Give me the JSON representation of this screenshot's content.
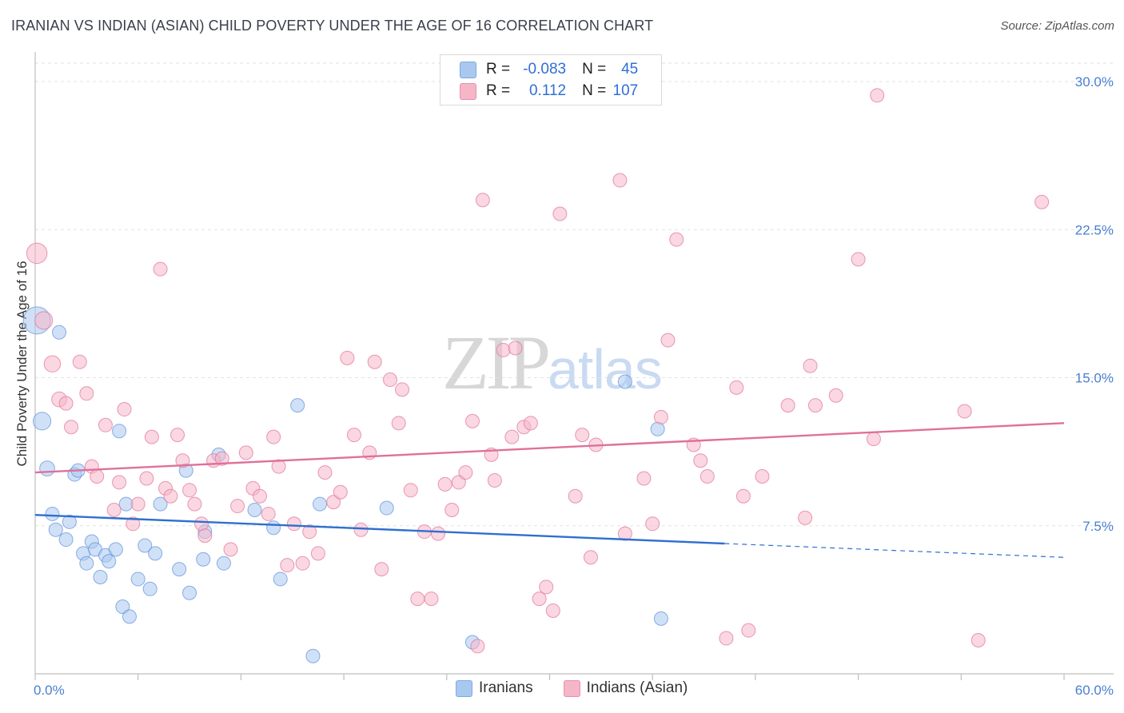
{
  "header": {
    "title": "IRANIAN VS INDIAN (ASIAN) CHILD POVERTY UNDER THE AGE OF 16 CORRELATION CHART",
    "source": "Source: ZipAtlas.com"
  },
  "watermark": {
    "zip": "ZIP",
    "atlas": "atlas"
  },
  "legend": {
    "rows": [
      {
        "r_label": "R = ",
        "r_value": "-0.083",
        "n_label": "N = ",
        "n_value": "45",
        "color": "#a9c8f0"
      },
      {
        "r_label": "R = ",
        "r_value": "0.112",
        "n_label": "N = ",
        "n_value": "107",
        "color": "#f5b6c8"
      }
    ],
    "bottom": [
      {
        "label": "Iranians",
        "color": "#a9c8f0"
      },
      {
        "label": "Indians (Asian)",
        "color": "#f5b6c8"
      }
    ]
  },
  "chart_data": {
    "type": "scatter",
    "title": "IRANIAN VS INDIAN (ASIAN) CHILD POVERTY UNDER THE AGE OF 16 CORRELATION CHART",
    "xlabel": "",
    "ylabel": "Child Poverty Under the Age of 16",
    "xlim": [
      0,
      60
    ],
    "ylim": [
      0,
      31.5
    ],
    "x_tick_labels": [
      "0.0%",
      "60.0%"
    ],
    "y_ticks": [
      7.5,
      15.0,
      22.5,
      30.0
    ],
    "y_tick_labels": [
      "7.5%",
      "15.0%",
      "22.5%",
      "30.0%"
    ],
    "grid": true,
    "legend_position": "top-center",
    "series": [
      {
        "name": "Iranians",
        "color": "#5b8fd9",
        "fill": "#a9c8f0",
        "trend": {
          "x": [
            0,
            40.2
          ],
          "y": [
            8.05,
            6.6
          ],
          "dashed_to": [
            60,
            5.9
          ]
        },
        "points": [
          [
            0.1,
            17.9,
            2
          ],
          [
            1.4,
            17.3,
            1
          ],
          [
            0.4,
            12.8,
            1.3
          ],
          [
            0.7,
            10.4,
            1.1
          ],
          [
            1.0,
            8.1,
            1
          ],
          [
            1.2,
            7.3,
            1
          ],
          [
            1.8,
            6.8,
            1
          ],
          [
            2.0,
            7.7,
            1
          ],
          [
            2.3,
            10.1,
            1
          ],
          [
            2.5,
            10.3,
            1
          ],
          [
            2.8,
            6.1,
            1
          ],
          [
            3.0,
            5.6,
            1
          ],
          [
            3.3,
            6.7,
            1
          ],
          [
            3.5,
            6.3,
            1
          ],
          [
            3.8,
            4.9,
            1
          ],
          [
            4.1,
            6.0,
            1
          ],
          [
            4.3,
            5.7,
            1
          ],
          [
            4.7,
            6.3,
            1
          ],
          [
            4.9,
            12.3,
            1
          ],
          [
            5.1,
            3.4,
            1
          ],
          [
            5.3,
            8.6,
            1
          ],
          [
            5.5,
            2.9,
            1
          ],
          [
            6.0,
            4.8,
            1
          ],
          [
            6.4,
            6.5,
            1
          ],
          [
            6.7,
            4.3,
            1
          ],
          [
            7.0,
            6.1,
            1
          ],
          [
            7.3,
            8.6,
            1
          ],
          [
            8.4,
            5.3,
            1
          ],
          [
            9.0,
            4.1,
            1
          ],
          [
            8.8,
            10.3,
            1
          ],
          [
            9.8,
            5.8,
            1
          ],
          [
            9.9,
            7.2,
            1
          ],
          [
            10.7,
            11.1,
            1
          ],
          [
            11.0,
            5.6,
            1
          ],
          [
            12.8,
            8.3,
            1
          ],
          [
            13.9,
            7.4,
            1
          ],
          [
            14.3,
            4.8,
            1
          ],
          [
            15.3,
            13.6,
            1
          ],
          [
            16.2,
            0.9,
            1
          ],
          [
            16.6,
            8.6,
            1
          ],
          [
            20.5,
            8.4,
            1
          ],
          [
            25.5,
            1.6,
            1
          ],
          [
            34.4,
            14.8,
            1
          ],
          [
            36.3,
            12.4,
            1
          ],
          [
            36.5,
            2.8,
            1
          ]
        ]
      },
      {
        "name": "Indians (Asian)",
        "color": "#e0709a",
        "fill": "#f5b6c8",
        "trend": {
          "x": [
            0,
            60
          ],
          "y": [
            10.2,
            12.7
          ]
        },
        "points": [
          [
            0.1,
            21.3,
            1.5
          ],
          [
            0.5,
            17.9,
            1.3
          ],
          [
            1.0,
            15.7,
            1.2
          ],
          [
            1.4,
            13.9,
            1.1
          ],
          [
            1.8,
            13.7,
            1
          ],
          [
            2.1,
            12.5,
            1
          ],
          [
            2.6,
            15.8,
            1
          ],
          [
            3.0,
            14.2,
            1
          ],
          [
            3.3,
            10.5,
            1
          ],
          [
            3.6,
            10.0,
            1
          ],
          [
            4.1,
            12.6,
            1
          ],
          [
            4.6,
            8.3,
            1
          ],
          [
            4.9,
            9.7,
            1
          ],
          [
            5.2,
            13.4,
            1
          ],
          [
            5.7,
            7.6,
            1
          ],
          [
            6.0,
            8.6,
            1
          ],
          [
            6.5,
            9.9,
            1
          ],
          [
            6.8,
            12.0,
            1
          ],
          [
            7.3,
            20.5,
            1
          ],
          [
            7.6,
            9.4,
            1
          ],
          [
            7.9,
            9.0,
            1
          ],
          [
            8.3,
            12.1,
            1
          ],
          [
            8.6,
            10.8,
            1
          ],
          [
            9.0,
            9.3,
            1
          ],
          [
            9.3,
            8.6,
            1
          ],
          [
            9.7,
            7.6,
            1
          ],
          [
            9.9,
            7.0,
            1
          ],
          [
            10.4,
            10.8,
            1
          ],
          [
            10.9,
            10.9,
            1
          ],
          [
            11.4,
            6.3,
            1
          ],
          [
            11.8,
            8.5,
            1
          ],
          [
            12.3,
            11.2,
            1
          ],
          [
            12.7,
            9.4,
            1
          ],
          [
            13.1,
            9.0,
            1
          ],
          [
            13.6,
            8.1,
            1
          ],
          [
            13.9,
            12.0,
            1
          ],
          [
            14.2,
            10.5,
            1
          ],
          [
            14.7,
            5.5,
            1
          ],
          [
            15.1,
            7.6,
            1
          ],
          [
            15.6,
            5.6,
            1
          ],
          [
            16.0,
            7.2,
            1
          ],
          [
            16.5,
            6.1,
            1
          ],
          [
            16.9,
            10.2,
            1
          ],
          [
            17.4,
            8.7,
            1
          ],
          [
            17.8,
            9.2,
            1
          ],
          [
            18.2,
            16.0,
            1
          ],
          [
            18.6,
            12.1,
            1
          ],
          [
            19.0,
            7.3,
            1
          ],
          [
            19.5,
            11.2,
            1
          ],
          [
            19.8,
            15.8,
            1
          ],
          [
            20.2,
            5.3,
            1
          ],
          [
            20.7,
            14.9,
            1
          ],
          [
            21.2,
            12.7,
            1
          ],
          [
            21.4,
            14.4,
            1
          ],
          [
            21.9,
            9.3,
            1
          ],
          [
            22.3,
            3.8,
            1
          ],
          [
            22.7,
            7.2,
            1
          ],
          [
            23.1,
            3.8,
            1
          ],
          [
            23.5,
            7.1,
            1
          ],
          [
            23.9,
            9.6,
            1
          ],
          [
            24.3,
            8.3,
            1
          ],
          [
            24.7,
            9.7,
            1
          ],
          [
            25.1,
            10.2,
            1
          ],
          [
            25.5,
            12.8,
            1
          ],
          [
            25.8,
            1.4,
            1
          ],
          [
            26.1,
            24.0,
            1
          ],
          [
            26.6,
            11.1,
            1
          ],
          [
            26.8,
            9.8,
            1
          ],
          [
            27.3,
            16.4,
            1
          ],
          [
            27.8,
            12.0,
            1
          ],
          [
            28.0,
            16.5,
            1
          ],
          [
            28.5,
            12.5,
            1
          ],
          [
            28.9,
            12.7,
            1
          ],
          [
            29.4,
            3.8,
            1
          ],
          [
            29.8,
            4.4,
            1
          ],
          [
            30.2,
            3.2,
            1
          ],
          [
            30.6,
            23.3,
            1
          ],
          [
            31.5,
            9.0,
            1
          ],
          [
            31.9,
            12.1,
            1
          ],
          [
            32.4,
            5.9,
            1
          ],
          [
            32.7,
            11.6,
            1
          ],
          [
            34.1,
            25.0,
            1
          ],
          [
            34.4,
            7.1,
            1
          ],
          [
            35.5,
            9.9,
            1
          ],
          [
            36.0,
            7.6,
            1
          ],
          [
            36.5,
            13.0,
            1
          ],
          [
            36.9,
            16.9,
            1
          ],
          [
            37.4,
            22.0,
            1
          ],
          [
            38.4,
            11.6,
            1
          ],
          [
            38.8,
            10.8,
            1
          ],
          [
            39.2,
            10.0,
            1
          ],
          [
            40.3,
            1.8,
            1
          ],
          [
            40.9,
            14.5,
            1
          ],
          [
            41.3,
            9.0,
            1
          ],
          [
            41.6,
            2.2,
            1
          ],
          [
            42.4,
            10.0,
            1
          ],
          [
            43.9,
            13.6,
            1
          ],
          [
            44.9,
            7.9,
            1
          ],
          [
            45.2,
            15.6,
            1
          ],
          [
            45.5,
            13.6,
            1
          ],
          [
            46.7,
            14.1,
            1
          ],
          [
            48.0,
            21.0,
            1
          ],
          [
            48.9,
            11.9,
            1
          ],
          [
            49.1,
            29.3,
            1
          ],
          [
            54.2,
            13.3,
            1
          ],
          [
            55.0,
            1.7,
            1
          ],
          [
            58.7,
            23.9,
            1
          ]
        ]
      }
    ]
  }
}
